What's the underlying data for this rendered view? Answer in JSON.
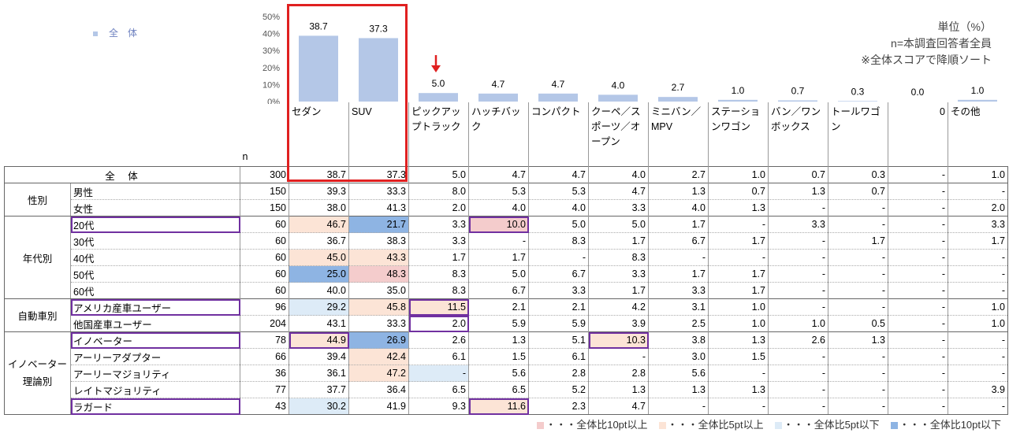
{
  "chart_data": {
    "type": "bar",
    "series": [
      {
        "name": "全　体",
        "values": [
          38.7,
          37.3,
          5.0,
          4.7,
          4.7,
          4.0,
          2.7,
          1.0,
          0.7,
          0.3,
          0.0,
          1.0
        ]
      }
    ],
    "value_labels": [
      "38.7",
      "37.3",
      "5.0",
      "4.7",
      "4.7",
      "4.0",
      "2.7",
      "1.0",
      "0.7",
      "0.3",
      "0.0",
      "1.0"
    ],
    "yticks": [
      "50%",
      "40%",
      "30%",
      "20%",
      "10%",
      "0%"
    ],
    "ylim": [
      0,
      50
    ],
    "legend_placement": "top-left",
    "bar_color": "#b4c7e7"
  },
  "categories": [
    {
      "label": "セダン"
    },
    {
      "label": "SUV"
    },
    {
      "label": "ピックアップトラック"
    },
    {
      "label": "ハッチバック"
    },
    {
      "label": "コンパクト"
    },
    {
      "label": "クーペ／スポーツ／オープン"
    },
    {
      "label": "ミニバン／MPV"
    },
    {
      "label": "ステーションワゴン"
    },
    {
      "label": "バン／ワンボックス"
    },
    {
      "label": "トールワゴン"
    },
    {
      "label": "0",
      "align": "right"
    },
    {
      "label": "その他"
    }
  ],
  "notes": {
    "unit": "単位（%）",
    "n_desc": "n=本調査回答者全員",
    "sort_desc": "※全体スコアで降順ソート"
  },
  "table": {
    "n_header": "n",
    "total": {
      "label": "全　体",
      "n": "300",
      "values": [
        "38.7",
        "37.3",
        "5.0",
        "4.7",
        "4.7",
        "4.0",
        "2.7",
        "1.0",
        "0.7",
        "0.3",
        "-",
        "1.0"
      ]
    },
    "groups": [
      {
        "name": "性別",
        "rows": [
          {
            "label": "男性",
            "n": "150",
            "values": [
              "39.3",
              "33.3",
              "8.0",
              "5.3",
              "5.3",
              "4.7",
              "1.3",
              "0.7",
              "1.3",
              "0.7",
              "-",
              "-"
            ]
          },
          {
            "label": "女性",
            "n": "150",
            "values": [
              "38.0",
              "41.3",
              "2.0",
              "4.0",
              "4.0",
              "3.3",
              "4.0",
              "1.3",
              "-",
              "-",
              "-",
              "2.0"
            ]
          }
        ]
      },
      {
        "name": "年代別",
        "rows": [
          {
            "label": "20代",
            "n": "60",
            "boxed": true,
            "values": [
              "46.7",
              "21.7",
              "3.3",
              "10.0",
              "5.0",
              "5.0",
              "1.7",
              "-",
              "3.3",
              "-",
              "-",
              "3.3"
            ],
            "hl": [
              "peach",
              "blue",
              "",
              "pink",
              "",
              "",
              "",
              "",
              "",
              "",
              "",
              ""
            ],
            "box": [
              false,
              false,
              false,
              true,
              false,
              false,
              false,
              false,
              false,
              false,
              false,
              false
            ]
          },
          {
            "label": "30代",
            "n": "60",
            "values": [
              "36.7",
              "38.3",
              "3.3",
              "-",
              "8.3",
              "1.7",
              "6.7",
              "1.7",
              "-",
              "1.7",
              "-",
              "1.7"
            ]
          },
          {
            "label": "40代",
            "n": "60",
            "values": [
              "45.0",
              "43.3",
              "1.7",
              "1.7",
              "-",
              "8.3",
              "-",
              "-",
              "-",
              "-",
              "-",
              "-"
            ],
            "hl": [
              "peach",
              "peach",
              "",
              "",
              "",
              "",
              "",
              "",
              "",
              "",
              "",
              ""
            ]
          },
          {
            "label": "50代",
            "n": "60",
            "values": [
              "25.0",
              "48.3",
              "8.3",
              "5.0",
              "6.7",
              "3.3",
              "1.7",
              "1.7",
              "-",
              "-",
              "-",
              "-"
            ],
            "hl": [
              "blue",
              "pink",
              "",
              "",
              "",
              "",
              "",
              "",
              "",
              "",
              "",
              ""
            ]
          },
          {
            "label": "60代",
            "n": "60",
            "values": [
              "40.0",
              "35.0",
              "8.3",
              "6.7",
              "3.3",
              "1.7",
              "3.3",
              "1.7",
              "-",
              "-",
              "-",
              "-"
            ]
          }
        ]
      },
      {
        "name": "自動車別",
        "rows": [
          {
            "label": "アメリカ産車ユーザー",
            "n": "96",
            "boxed": true,
            "values": [
              "29.2",
              "45.8",
              "11.5",
              "2.1",
              "2.1",
              "4.2",
              "3.1",
              "1.0",
              "-",
              "-",
              "-",
              "1.0"
            ],
            "hl": [
              "lblue",
              "peach",
              "peach",
              "",
              "",
              "",
              "",
              "",
              "",
              "",
              "",
              ""
            ],
            "box": [
              false,
              false,
              true,
              false,
              false,
              false,
              false,
              false,
              false,
              false,
              false,
              false
            ]
          },
          {
            "label": "他国産車ユーザー",
            "n": "204",
            "values": [
              "43.1",
              "33.3",
              "2.0",
              "5.9",
              "5.9",
              "3.9",
              "2.5",
              "1.0",
              "1.0",
              "0.5",
              "-",
              "1.0"
            ],
            "box": [
              false,
              false,
              true,
              false,
              false,
              false,
              false,
              false,
              false,
              false,
              false,
              false
            ]
          }
        ]
      },
      {
        "name": "イノベーター理論別",
        "rows": [
          {
            "label": "イノベーター",
            "n": "78",
            "boxed": true,
            "values": [
              "44.9",
              "26.9",
              "2.6",
              "1.3",
              "5.1",
              "10.3",
              "3.8",
              "1.3",
              "2.6",
              "1.3",
              "-",
              "-"
            ],
            "hl": [
              "peach",
              "blue",
              "",
              "",
              "",
              "peach",
              "",
              "",
              "",
              "",
              "",
              ""
            ],
            "box": [
              true,
              false,
              false,
              false,
              false,
              true,
              false,
              false,
              false,
              false,
              false,
              false
            ]
          },
          {
            "label": "アーリーアダプター",
            "n": "66",
            "values": [
              "39.4",
              "42.4",
              "6.1",
              "1.5",
              "6.1",
              "-",
              "3.0",
              "1.5",
              "-",
              "-",
              "-",
              "-"
            ],
            "hl": [
              "",
              "peach",
              "",
              "",
              "",
              "",
              "",
              "",
              "",
              "",
              "",
              ""
            ]
          },
          {
            "label": "アーリーマジョリティ",
            "n": "36",
            "values": [
              "36.1",
              "47.2",
              "-",
              "5.6",
              "2.8",
              "2.8",
              "5.6",
              "-",
              "-",
              "-",
              "-",
              "-"
            ],
            "hl": [
              "",
              "peach",
              "lblue",
              "",
              "",
              "",
              "",
              "",
              "",
              "",
              "",
              ""
            ]
          },
          {
            "label": "レイトマジョリティ",
            "n": "77",
            "values": [
              "37.7",
              "36.4",
              "6.5",
              "6.5",
              "5.2",
              "1.3",
              "1.3",
              "1.3",
              "-",
              "-",
              "-",
              "3.9"
            ]
          },
          {
            "label": "ラガード",
            "n": "43",
            "boxed": true,
            "values": [
              "30.2",
              "41.9",
              "9.3",
              "11.6",
              "2.3",
              "4.7",
              "-",
              "-",
              "-",
              "-",
              "-",
              "-"
            ],
            "hl": [
              "lblue",
              "",
              "",
              "peach",
              "",
              "",
              "",
              "",
              "",
              "",
              "",
              ""
            ],
            "box": [
              false,
              false,
              false,
              true,
              false,
              false,
              false,
              false,
              false,
              false,
              false,
              false
            ]
          }
        ]
      }
    ]
  },
  "cell_legend": [
    {
      "label": "・・・全体比10pt以上",
      "color": "#f4cccc"
    },
    {
      "label": "・・・全体比5pt以上",
      "color": "#fce4d6"
    },
    {
      "label": "・・・全体比5pt以下",
      "color": "#ddebf7"
    },
    {
      "label": "・・・全体比10pt以下",
      "color": "#8eb4e3"
    }
  ],
  "colors": {
    "highlight_box": "#e02020",
    "row_box": "#7030a0",
    "arrow": "#e02020"
  }
}
